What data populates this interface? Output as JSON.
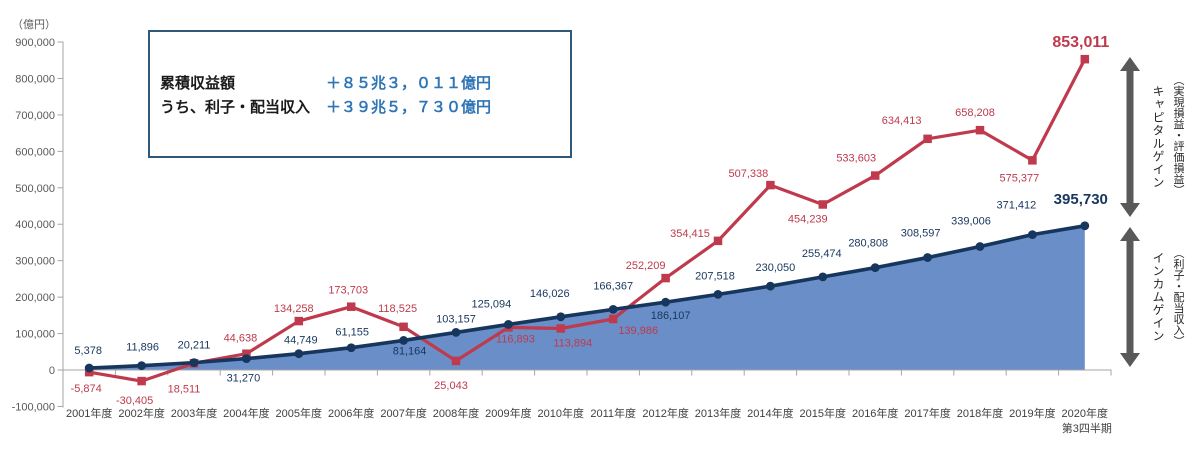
{
  "chart_data": {
    "type": "line",
    "unit_label": "（億円）",
    "categories": [
      "2001年度",
      "2002年度",
      "2003年度",
      "2004年度",
      "2005年度",
      "2006年度",
      "2007年度",
      "2008年度",
      "2009年度",
      "2010年度",
      "2011年度",
      "2012年度",
      "2013年度",
      "2014年度",
      "2015年度",
      "2016年度",
      "2017年度",
      "2018年度",
      "2019年度",
      "2020年度"
    ],
    "last_category_note": "第3四半期",
    "ylim": [
      -100000,
      900000
    ],
    "ytick_step": 100000,
    "ytick_labels": [
      "-100,000",
      "0",
      "100,000",
      "200,000",
      "300,000",
      "400,000",
      "500,000",
      "600,000",
      "700,000",
      "800,000",
      "900,000"
    ],
    "grid": false,
    "legend_position": "top-left-box",
    "series": [
      {
        "name": "累積収益額",
        "color": "#BE3A4C",
        "marker": "square",
        "values": [
          -5874,
          -30405,
          18511,
          44638,
          134258,
          173703,
          118525,
          25043,
          116893,
          113894,
          139986,
          252209,
          354415,
          507338,
          454239,
          533603,
          634413,
          658208,
          575377,
          853011
        ]
      },
      {
        "name": "うち、利子・配当収入",
        "color": "#17365D",
        "marker": "circle",
        "area_fill": "#6A8EC8",
        "values": [
          5378,
          11896,
          20211,
          31270,
          44749,
          61155,
          81164,
          103157,
          125094,
          146026,
          166367,
          186107,
          207518,
          230050,
          255474,
          280808,
          308597,
          339006,
          371412,
          395730
        ]
      }
    ]
  },
  "summary_box": {
    "row1_label": "累積収益額",
    "row1_value": "＋８５兆３，０１１億円",
    "row2_label": "うち、利子・配当収入",
    "row2_value": "＋３９兆５，７３０億円"
  },
  "annotations": {
    "capital_gain_label": "キャピタルゲイン",
    "capital_gain_sub": "（実現損益・評価損益）",
    "income_gain_label": "インカムゲイン",
    "income_gain_sub": "（利子・配当収入）"
  }
}
